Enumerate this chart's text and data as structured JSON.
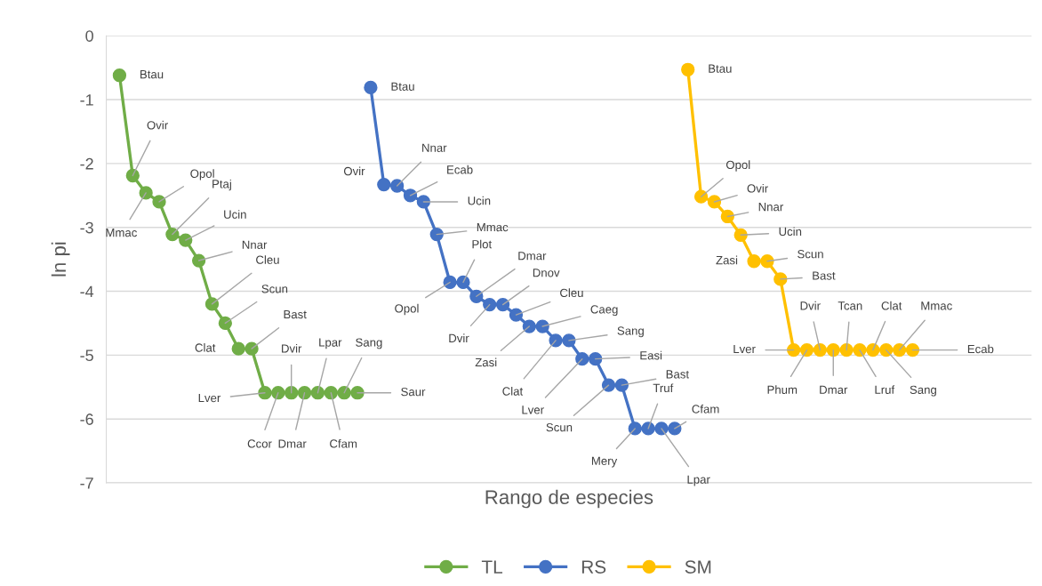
{
  "chart_data": {
    "type": "line",
    "xlabel": "Rango de especies",
    "ylabel": "ln pi",
    "categories": [
      null,
      null,
      null,
      null,
      null,
      null,
      null,
      null,
      null,
      null,
      null,
      null,
      null,
      null,
      null,
      null,
      null,
      null,
      null,
      null,
      null,
      null,
      null,
      null,
      null,
      null,
      null,
      null,
      null,
      null,
      null,
      null,
      null,
      null,
      null,
      null,
      null,
      null,
      null,
      null,
      null,
      null,
      null,
      null,
      null,
      null,
      null,
      null,
      null,
      null,
      null,
      null,
      null,
      null,
      null,
      null,
      null,
      null,
      null,
      null,
      null,
      null,
      null,
      null,
      null,
      null,
      null,
      null,
      null,
      null,
      null
    ],
    "ylim": [
      -7,
      0
    ],
    "yticks": [
      -7,
      -6,
      -5,
      -4,
      -3,
      -2,
      -1,
      0
    ],
    "grid": "y",
    "legend": "bottom",
    "marker": "circle",
    "line_style": "solid",
    "series": [
      {
        "name": "TL",
        "color": "#70ad47",
        "values": [
          null,
          -0.62,
          -2.19,
          -2.46,
          -2.6,
          -3.11,
          -3.2,
          -3.52,
          -4.2,
          -4.5,
          -4.9,
          -4.9,
          -5.59,
          -5.59,
          -5.59,
          -5.59,
          -5.59,
          -5.59,
          -5.59,
          -5.59,
          null,
          null,
          null,
          null,
          null,
          null,
          null,
          null,
          null,
          null,
          null,
          null,
          null,
          null,
          null,
          null,
          null,
          null,
          null,
          null,
          null,
          null,
          null,
          null,
          null,
          null,
          null,
          null,
          null,
          null,
          null,
          null,
          null,
          null,
          null,
          null,
          null,
          null,
          null,
          null,
          null,
          null,
          null,
          null,
          null,
          null,
          null,
          null,
          null,
          null,
          null
        ],
        "value_labels": [
          null,
          "Btau",
          "Ovir",
          "Mmac",
          "Opol",
          "Ptaj",
          "Ucin",
          "Nnar",
          "Cleu",
          "Scun",
          "Clat",
          "Bast",
          "Lver",
          "Ccor",
          "Dvir",
          "Dmar",
          "Lpar",
          "Cfam",
          "Sang",
          "Saur",
          null,
          null,
          null,
          null,
          null,
          null,
          null,
          null,
          null,
          null,
          null,
          null,
          null,
          null,
          null,
          null,
          null,
          null,
          null,
          null,
          null,
          null,
          null,
          null,
          null,
          null,
          null,
          null,
          null,
          null,
          null,
          null,
          null,
          null,
          null,
          null,
          null,
          null,
          null,
          null,
          null,
          null,
          null,
          null,
          null,
          null,
          null,
          null,
          null,
          null,
          null
        ]
      },
      {
        "name": "RS",
        "color": "#4472c4",
        "values": [
          null,
          null,
          null,
          null,
          null,
          null,
          null,
          null,
          null,
          null,
          null,
          null,
          null,
          null,
          null,
          null,
          null,
          null,
          null,
          null,
          -0.81,
          -2.33,
          -2.35,
          -2.5,
          -2.6,
          -3.11,
          -3.86,
          -3.86,
          -4.08,
          -4.21,
          -4.21,
          -4.37,
          -4.55,
          -4.55,
          -4.77,
          -4.77,
          -5.06,
          -5.06,
          -5.47,
          -5.47,
          -6.15,
          -6.15,
          -6.15,
          -6.15,
          null,
          null,
          null,
          null,
          null,
          null,
          null,
          null,
          null,
          null,
          null,
          null,
          null,
          null,
          null,
          null,
          null,
          null,
          null,
          null,
          null,
          null,
          null,
          null,
          null,
          null,
          null
        ],
        "value_labels": [
          null,
          null,
          null,
          null,
          null,
          null,
          null,
          null,
          null,
          null,
          null,
          null,
          null,
          null,
          null,
          null,
          null,
          null,
          null,
          null,
          "Btau",
          "Ovir",
          "Nnar",
          "Ecab",
          "Ucin",
          "Mmac",
          "Opol",
          "Plot",
          "Dmar",
          "Dvir",
          "Dnov",
          "Cleu",
          "Zasi",
          "Caeg",
          "Clat",
          "Sang",
          "Lver",
          "Easi",
          "Scun",
          "Bast",
          "Mery",
          "Truf",
          "Lpar",
          "Cfam",
          null,
          null,
          null,
          null,
          null,
          null,
          null,
          null,
          null,
          null,
          null,
          null,
          null,
          null,
          null,
          null,
          null,
          null,
          null,
          null,
          null,
          null,
          null,
          null,
          null,
          null,
          null
        ]
      },
      {
        "name": "SM",
        "color": "#ffc000",
        "values": [
          null,
          null,
          null,
          null,
          null,
          null,
          null,
          null,
          null,
          null,
          null,
          null,
          null,
          null,
          null,
          null,
          null,
          null,
          null,
          null,
          null,
          null,
          null,
          null,
          null,
          null,
          null,
          null,
          null,
          null,
          null,
          null,
          null,
          null,
          null,
          null,
          null,
          null,
          null,
          null,
          null,
          null,
          null,
          null,
          -0.53,
          -2.52,
          -2.6,
          -2.83,
          -3.12,
          -3.53,
          -3.53,
          -3.81,
          -4.92,
          -4.92,
          -4.92,
          -4.92,
          -4.92,
          -4.92,
          -4.92,
          -4.92,
          -4.92,
          -4.92,
          null,
          null,
          null,
          null,
          null,
          null,
          null,
          null,
          null
        ],
        "value_labels": [
          null,
          null,
          null,
          null,
          null,
          null,
          null,
          null,
          null,
          null,
          null,
          null,
          null,
          null,
          null,
          null,
          null,
          null,
          null,
          null,
          null,
          null,
          null,
          null,
          null,
          null,
          null,
          null,
          null,
          null,
          null,
          null,
          null,
          null,
          null,
          null,
          null,
          null,
          null,
          null,
          null,
          null,
          null,
          null,
          "Btau",
          "Opol",
          "Ovir",
          "Nnar",
          "Ucin",
          "Zasi",
          "Scun",
          "Bast",
          "Lver",
          "Phum",
          "Dvir",
          "Dmar",
          "Tcan",
          "Lruf",
          "Clat",
          "Sang",
          "Mmac",
          "Ecab",
          null,
          null,
          null,
          null,
          null,
          null,
          null,
          null,
          null
        ]
      }
    ]
  }
}
